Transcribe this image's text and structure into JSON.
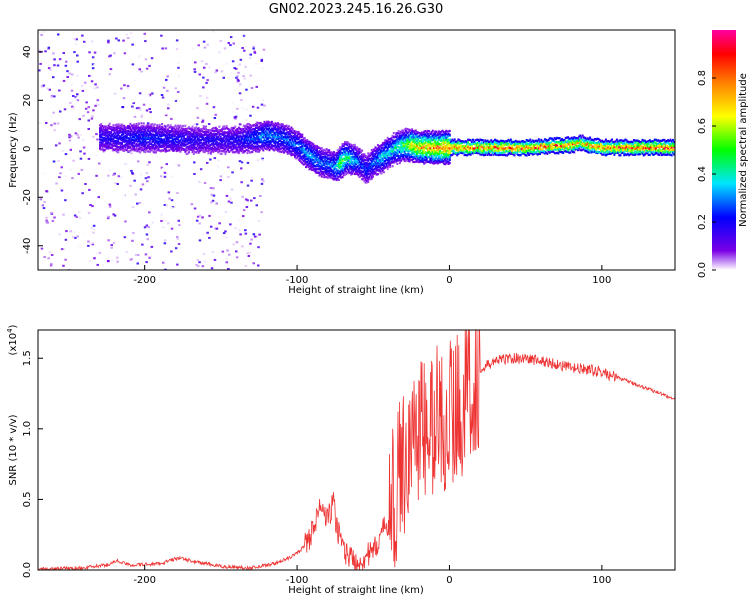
{
  "chart_data": [
    {
      "type": "heatmap",
      "title": "GN02.2023.245.16.26.G30",
      "xlabel": "Height of straight line (km)",
      "ylabel": "Frequency (Hz)",
      "xlim": [
        -270,
        148
      ],
      "ylim": [
        -50,
        49
      ],
      "xticks": [
        -200,
        -100,
        0,
        100
      ],
      "xtick_labels": [
        "-200",
        "-100",
        "0",
        "100"
      ],
      "yticks": [
        -40,
        -20,
        0,
        20,
        40
      ],
      "ytick_labels": [
        "-40",
        "-20",
        "0",
        "20",
        "40"
      ],
      "colorbar": {
        "label": "Normalized spectral amplitude",
        "range": [
          0,
          1
        ],
        "ticks": [
          0.0,
          0.2,
          0.4,
          0.6,
          0.8
        ],
        "tick_labels": [
          "0.0",
          "0.2",
          "0.4",
          "0.6",
          "0.8"
        ],
        "colors": [
          "#ffffff",
          "#7a00e6",
          "#0000ff",
          "#00e5ff",
          "#00ff00",
          "#ffff00",
          "#ff8000",
          "#ff0000",
          "#ff00a0"
        ]
      },
      "ridge": {
        "x": [
          -230,
          -200,
          -170,
          -140,
          -120,
          -110,
          -100,
          -95,
          -90,
          -85,
          -80,
          -75,
          -72,
          -68,
          -64,
          -60,
          -55,
          -50,
          -45,
          -40,
          -35,
          -30,
          -25,
          -20,
          -10,
          0,
          20,
          50,
          80,
          85,
          90,
          100,
          120,
          148
        ],
        "freq": [
          5,
          5,
          4,
          4,
          6,
          5,
          2,
          -1,
          -3,
          -5,
          -6,
          -7,
          -5,
          -3,
          -4,
          -5,
          -8,
          -5,
          -3,
          -1,
          1,
          2,
          2,
          1,
          1,
          1,
          1,
          1,
          2,
          3,
          2,
          1,
          1,
          1
        ],
        "amplitude": [
          0.2,
          0.25,
          0.2,
          0.2,
          0.35,
          0.3,
          0.3,
          0.35,
          0.35,
          0.3,
          0.3,
          0.35,
          0.6,
          0.5,
          0.4,
          0.3,
          0.25,
          0.3,
          0.4,
          0.4,
          0.45,
          0.55,
          0.7,
          0.75,
          0.8,
          0.85,
          0.85,
          0.88,
          0.85,
          0.7,
          0.8,
          0.85,
          0.88,
          0.88
        ]
      },
      "noise_bands": [
        [
          -270,
          -230
        ],
        [
          -225,
          -195
        ],
        [
          -190,
          -178
        ],
        [
          -170,
          -122
        ]
      ]
    },
    {
      "type": "line",
      "xlabel": "Height of straight line (km)",
      "ylabel": "SNR (10 * v/v)",
      "y_multiplier_label": "(x10",
      "y_multiplier_exponent": "4",
      "y_multiplier_close": ")",
      "xlim": [
        -270,
        148
      ],
      "ylim": [
        0,
        1.7
      ],
      "xticks": [
        -200,
        -100,
        0,
        100
      ],
      "xtick_labels": [
        "-200",
        "-100",
        "0",
        "100"
      ],
      "yticks": [
        0.0,
        0.5,
        1.0,
        1.5
      ],
      "ytick_labels": [
        "0.0",
        "0.5",
        "1.0",
        "1.5"
      ],
      "color": "#ee3333",
      "series": [
        {
          "x": [
            -270,
            -240,
            -225,
            -218,
            -210,
            -190,
            -178,
            -165,
            -150,
            -130,
            -115,
            -105,
            -98,
            -92,
            -88,
            -84,
            -80,
            -76,
            -74,
            -72,
            -68,
            -64,
            -60,
            -55,
            -50,
            -45,
            -40,
            -36,
            -32,
            -28,
            -24,
            -20,
            -16,
            -12,
            -8,
            -4,
            0,
            4,
            8,
            12,
            16,
            20,
            25,
            30,
            40,
            50,
            60,
            70,
            80,
            90,
            95,
            100,
            110,
            120,
            130,
            140,
            148
          ],
          "values": [
            0.0,
            0.01,
            0.03,
            0.06,
            0.03,
            0.04,
            0.08,
            0.05,
            0.02,
            0.01,
            0.04,
            0.08,
            0.13,
            0.22,
            0.35,
            0.45,
            0.35,
            0.48,
            0.3,
            0.25,
            0.12,
            0.08,
            0.05,
            0.1,
            0.12,
            0.25,
            0.35,
            0.5,
            0.7,
            0.85,
            0.9,
            1.05,
            0.95,
            1.0,
            1.1,
            1.05,
            1.1,
            1.15,
            1.2,
            1.3,
            1.35,
            1.4,
            1.45,
            1.48,
            1.5,
            1.5,
            1.48,
            1.46,
            1.43,
            1.42,
            1.41,
            1.4,
            1.36,
            1.32,
            1.28,
            1.24,
            1.2
          ]
        }
      ]
    }
  ]
}
